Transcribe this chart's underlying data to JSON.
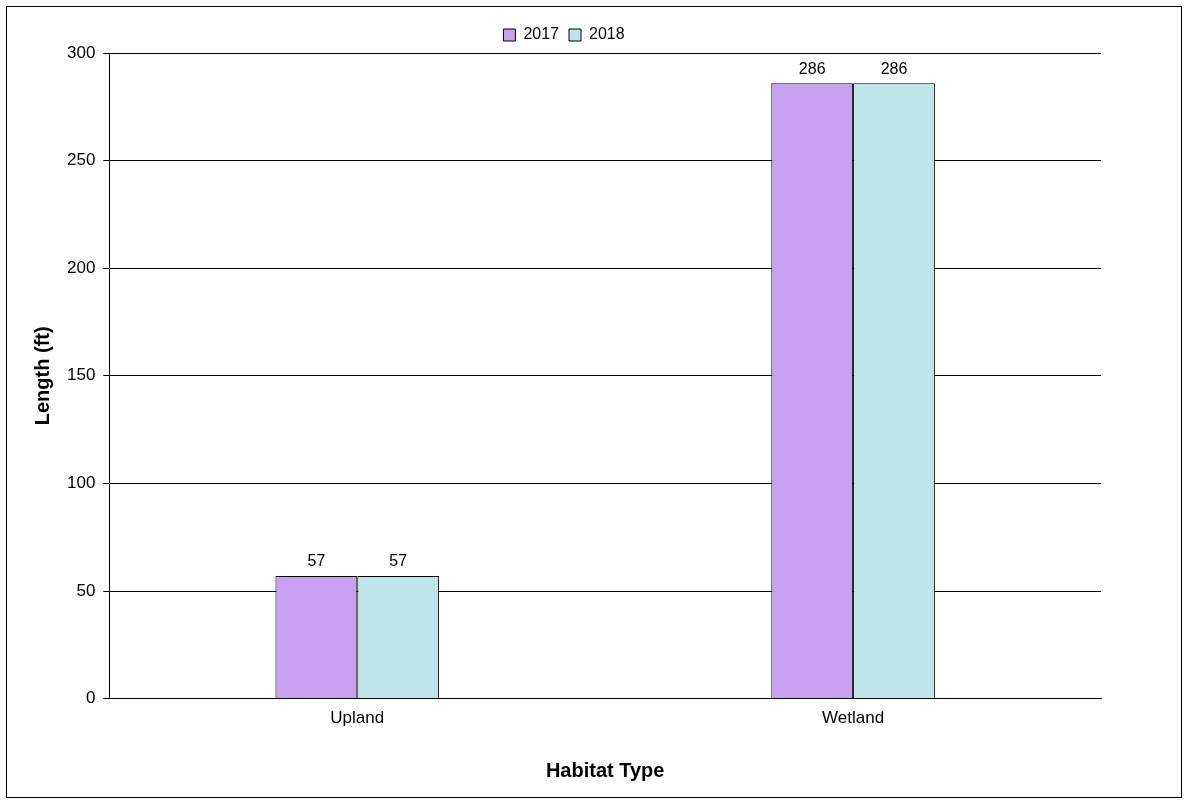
{
  "chart_data": {
    "type": "bar",
    "xlabel": "Habitat Type",
    "ylabel": "Length (ft)",
    "categories": [
      "Upland",
      "Wetland"
    ],
    "series": [
      {
        "name": "2017",
        "color": "#c9a0f0",
        "values": [
          57,
          286
        ]
      },
      {
        "name": "2018",
        "color": "#bfe4ea",
        "values": [
          57,
          286
        ]
      }
    ],
    "ylim": [
      0,
      300
    ],
    "yticks": [
      0,
      50,
      100,
      150,
      200,
      250,
      300
    ],
    "grid": "y",
    "legend": "top",
    "data_labels": true
  }
}
